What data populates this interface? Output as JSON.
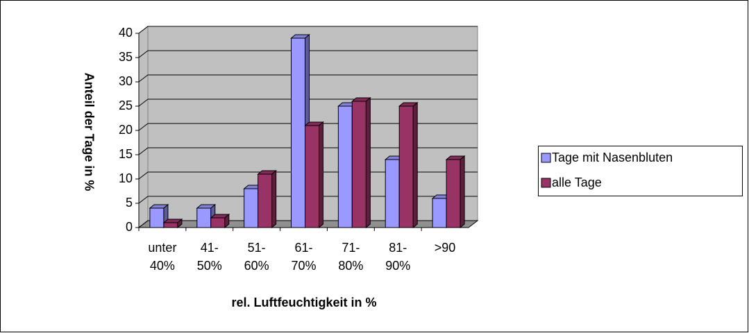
{
  "chart_data": {
    "type": "bar3d",
    "ylabel": "Anteil der Tage in %",
    "xlabel": "rel. Luftfeuchtigkeit in %",
    "categories": [
      "unter 40%",
      "41-50%",
      "51-60%",
      "61-70%",
      "71-80%",
      "81-90%",
      ">90"
    ],
    "series": [
      {
        "name": "Tage mit Nasenbluten",
        "color": "#9999ff",
        "values": [
          4,
          4,
          8,
          39,
          25,
          14,
          6
        ]
      },
      {
        "name": "alle Tage",
        "color": "#993366",
        "values": [
          1,
          2,
          11,
          21,
          26,
          25,
          14
        ]
      }
    ],
    "ylim": [
      0,
      40
    ],
    "yticks": [
      0,
      5,
      10,
      15,
      20,
      25,
      30,
      35,
      40
    ],
    "grid": true,
    "legend": "right"
  }
}
